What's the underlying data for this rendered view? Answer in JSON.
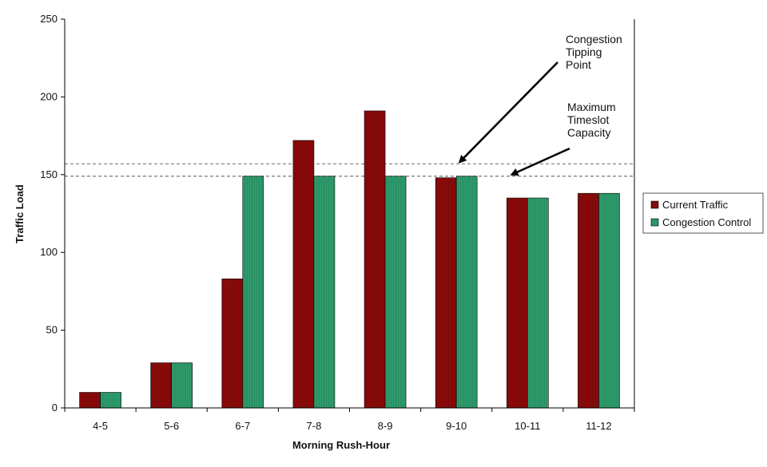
{
  "chart_data": {
    "type": "bar",
    "categories": [
      "4-5",
      "5-6",
      "6-7",
      "7-8",
      "8-9",
      "9-10",
      "10-11",
      "11-12"
    ],
    "series": [
      {
        "name": "Current Traffic",
        "values": [
          10,
          29,
          83,
          172,
          191,
          148,
          135,
          138
        ],
        "color": "#8b0a0a"
      },
      {
        "name": "Congestion Control",
        "values": [
          10,
          29,
          149,
          149,
          149,
          149,
          135,
          138
        ],
        "color": "#2e9a6b"
      }
    ],
    "xlabel": "Morning Rush-Hour",
    "ylabel": "Traffic Load",
    "ylim": [
      0,
      250
    ],
    "yticks": [
      0,
      50,
      100,
      150,
      200,
      250
    ],
    "grid": false,
    "legend_position": "right",
    "reference_lines": [
      {
        "value": 157,
        "style": "dashed"
      },
      {
        "value": 149,
        "style": "dashed"
      }
    ],
    "annotations": [
      {
        "lines": [
          "Congestion",
          "Tipping",
          "Point"
        ],
        "points_to": {
          "category": "9-10",
          "value": 157
        }
      },
      {
        "lines": [
          "Maximum",
          "Timeslot",
          "Capacity"
        ],
        "points_to": {
          "category": "10-11",
          "value": 149
        }
      }
    ]
  }
}
